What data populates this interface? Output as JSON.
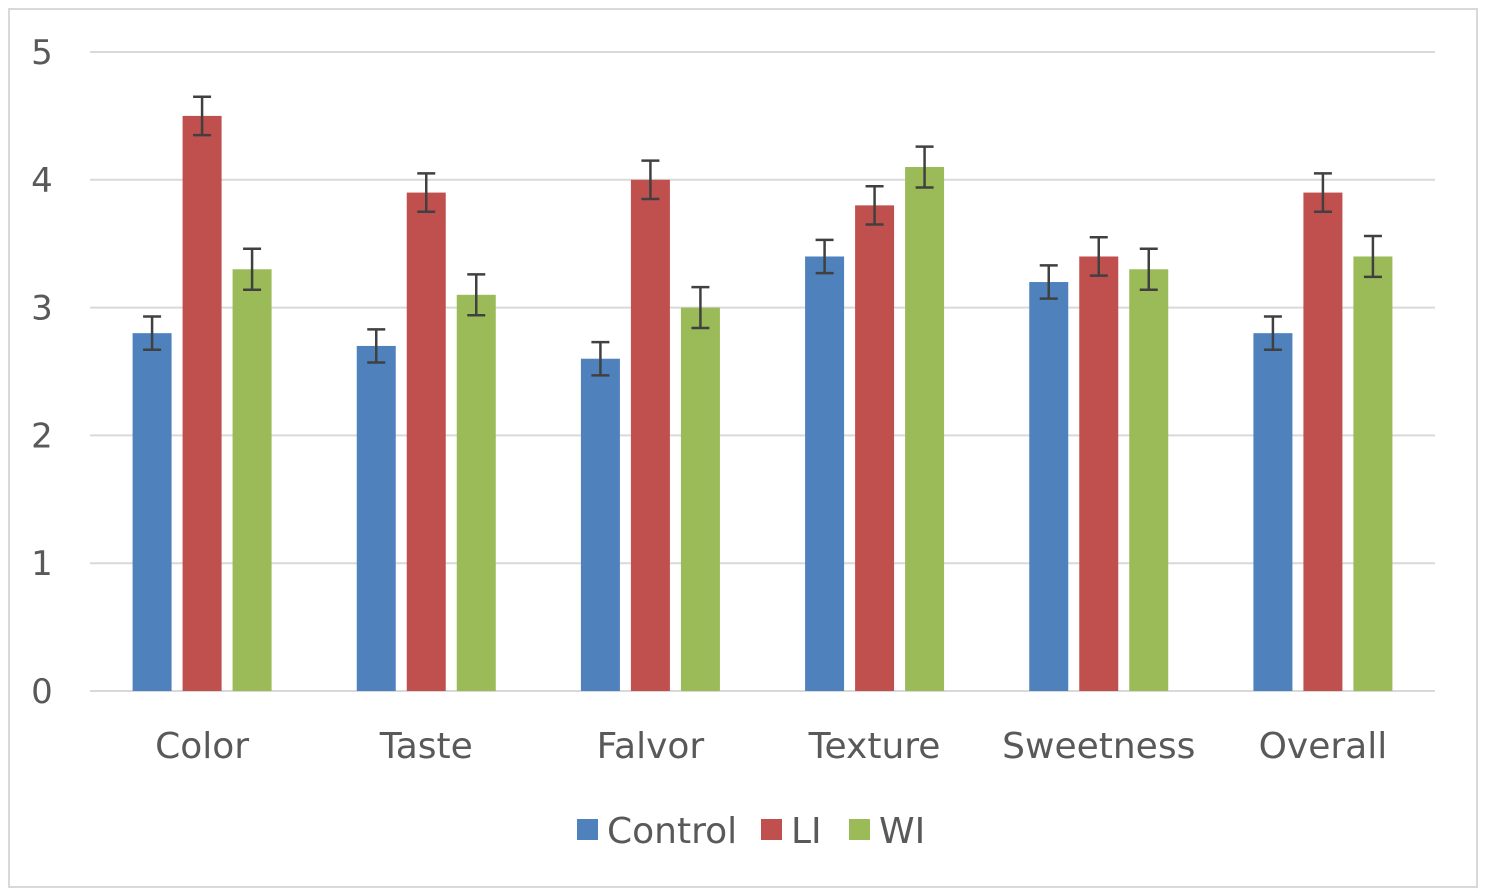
{
  "chart_data": {
    "type": "bar",
    "title": "",
    "xlabel": "",
    "ylabel": "",
    "ylim": [
      0,
      5
    ],
    "yticks": [
      0,
      1,
      2,
      3,
      4,
      5
    ],
    "grid": true,
    "legend_position": "bottom",
    "categories": [
      "Color",
      "Taste",
      "Falvor",
      "Texture",
      "Sweetness",
      "Overall"
    ],
    "series": [
      {
        "name": "Control",
        "color": "#4f81bd",
        "values": [
          2.8,
          2.7,
          2.6,
          3.4,
          3.2,
          2.8
        ],
        "errors": [
          0.13,
          0.13,
          0.13,
          0.13,
          0.13,
          0.13
        ]
      },
      {
        "name": "LI",
        "color": "#c0504d",
        "values": [
          4.5,
          3.9,
          4.0,
          3.8,
          3.4,
          3.9
        ],
        "errors": [
          0.15,
          0.15,
          0.15,
          0.15,
          0.15,
          0.15
        ]
      },
      {
        "name": "WI",
        "color": "#9bbb59",
        "values": [
          3.3,
          3.1,
          3.0,
          4.1,
          3.3,
          3.4
        ],
        "errors": [
          0.16,
          0.16,
          0.16,
          0.16,
          0.16,
          0.16
        ]
      }
    ]
  }
}
